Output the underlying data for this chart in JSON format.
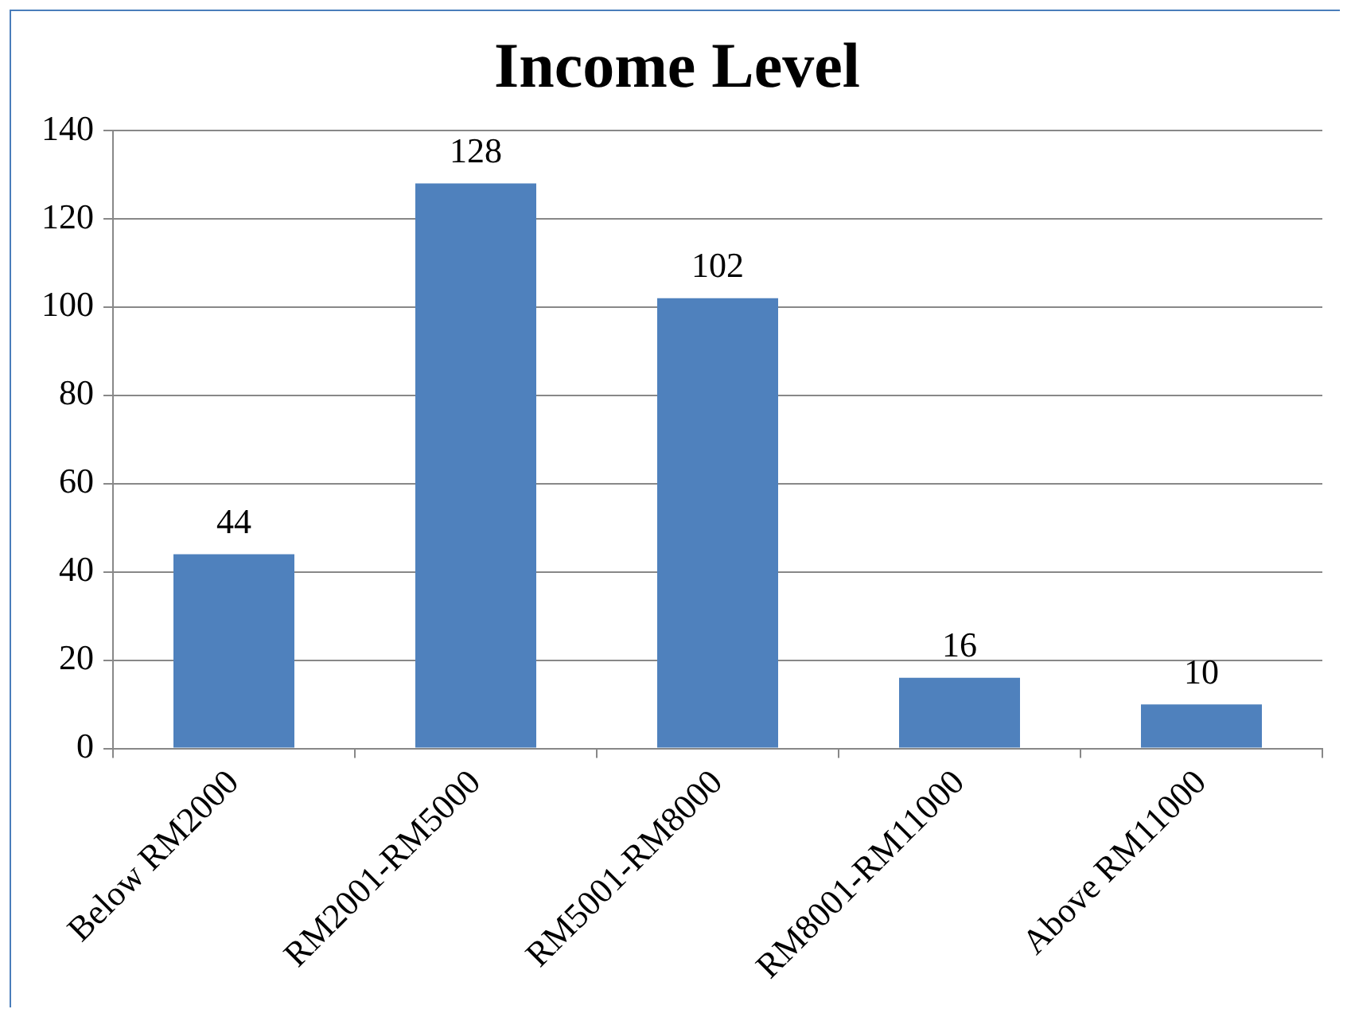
{
  "chart_data": {
    "type": "bar",
    "title": "Income Level",
    "categories": [
      "Below RM2000",
      "RM2001-RM5000",
      "RM5001-RM8000",
      "RM8001-RM11000",
      "Above RM11000"
    ],
    "values": [
      44,
      128,
      102,
      16,
      10
    ],
    "color": "#4f81bd",
    "ylim": [
      0,
      140
    ],
    "yticks": [
      0,
      20,
      40,
      60,
      80,
      100,
      120,
      140
    ],
    "grid": "y",
    "legend": false,
    "data_labels": true
  }
}
